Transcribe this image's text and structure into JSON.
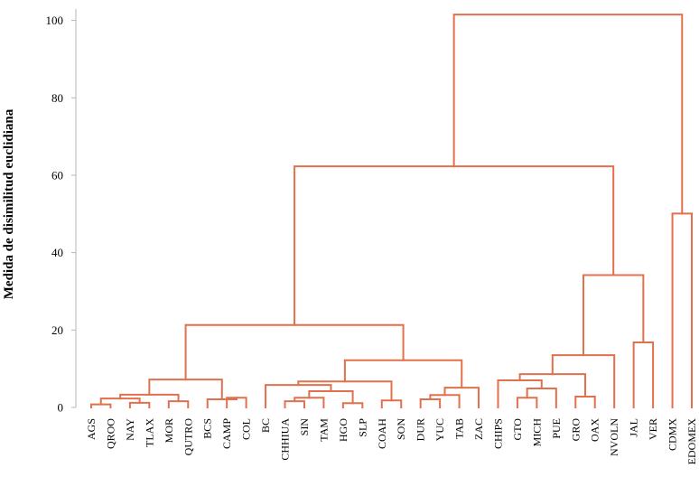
{
  "chart_data": {
    "type": "dendrogram",
    "title": "",
    "xlabel": "",
    "ylabel": "Medida de disimilitud euclidiana",
    "ylim": [
      0,
      102
    ],
    "yticks": [
      0,
      20,
      40,
      60,
      80,
      100
    ],
    "line_color": "#e2704d",
    "leaves": [
      "AGS",
      "QROO",
      "NAY",
      "TLAX",
      "MOR",
      "QUTRO",
      "BCS",
      "CAMP",
      "COL",
      "BC",
      "CHHIUA",
      "SIN",
      "TAM",
      "HGO",
      "SLP",
      "COAH",
      "SON",
      "DUR",
      "YUC",
      "TAB",
      "ZAC",
      "CHIPS",
      "GTO",
      "MICH",
      "PUE",
      "GRO",
      "OAX",
      "NVOLN",
      "JAL",
      "VER",
      "CDMX",
      "EDOMEX"
    ],
    "merges": [
      {
        "id": "m1",
        "left": "AGS",
        "right": "QROO",
        "height": 0.8
      },
      {
        "id": "m2",
        "left": "NAY",
        "right": "TLAX",
        "height": 1.2
      },
      {
        "id": "m3",
        "left": "m1",
        "right": "m2",
        "height": 2.3
      },
      {
        "id": "m4",
        "left": "MOR",
        "right": "QUTRO",
        "height": 1.6
      },
      {
        "id": "m5",
        "left": "m3",
        "right": "m4",
        "height": 3.3
      },
      {
        "id": "m6",
        "left": "CAMP",
        "right": "COL",
        "height": 2.5
      },
      {
        "id": "m7",
        "left": "BCS",
        "right": "m6",
        "height": 2.1
      },
      {
        "id": "m8",
        "left": "m5",
        "right": "m7",
        "height": 7.2
      },
      {
        "id": "m9",
        "left": "CHHIUA",
        "right": "SIN",
        "height": 1.6
      },
      {
        "id": "m10",
        "left": "m9",
        "right": "TAM",
        "height": 2.5
      },
      {
        "id": "m11",
        "left": "HGO",
        "right": "SLP",
        "height": 1.1
      },
      {
        "id": "m12",
        "left": "m10",
        "right": "m11",
        "height": 4.2
      },
      {
        "id": "m13",
        "left": "BC",
        "right": "m12",
        "height": 5.8
      },
      {
        "id": "m14",
        "left": "COAH",
        "right": "SON",
        "height": 1.8
      },
      {
        "id": "m15",
        "left": "m13",
        "right": "m14",
        "height": 6.7
      },
      {
        "id": "m16",
        "left": "DUR",
        "right": "YUC",
        "height": 2.1
      },
      {
        "id": "m17",
        "left": "m16",
        "right": "TAB",
        "height": 3.2
      },
      {
        "id": "m18",
        "left": "m17",
        "right": "ZAC",
        "height": 5.1
      },
      {
        "id": "m19",
        "left": "m15",
        "right": "m18",
        "height": 12.2
      },
      {
        "id": "m20",
        "left": "m8",
        "right": "m19",
        "height": 21.3
      },
      {
        "id": "m21",
        "left": "GTO",
        "right": "MICH",
        "height": 2.5
      },
      {
        "id": "m22",
        "left": "m21",
        "right": "PUE",
        "height": 4.9
      },
      {
        "id": "m23",
        "left": "CHIPS",
        "right": "m22",
        "height": 7.0
      },
      {
        "id": "m24",
        "left": "GRO",
        "right": "OAX",
        "height": 2.8
      },
      {
        "id": "m25",
        "left": "m23",
        "right": "m24",
        "height": 8.6
      },
      {
        "id": "m26",
        "left": "m25",
        "right": "NVOLN",
        "height": 13.5
      },
      {
        "id": "m27",
        "left": "JAL",
        "right": "VER",
        "height": 16.8
      },
      {
        "id": "m28",
        "left": "m26",
        "right": "m27",
        "height": 34.2
      },
      {
        "id": "m29",
        "left": "m20",
        "right": "m28",
        "height": 62.3
      },
      {
        "id": "m30",
        "left": "CDMX",
        "right": "EDOMEX",
        "height": 50.1
      },
      {
        "id": "m31",
        "left": "m29",
        "right": "m30",
        "height": 101.5
      }
    ]
  }
}
